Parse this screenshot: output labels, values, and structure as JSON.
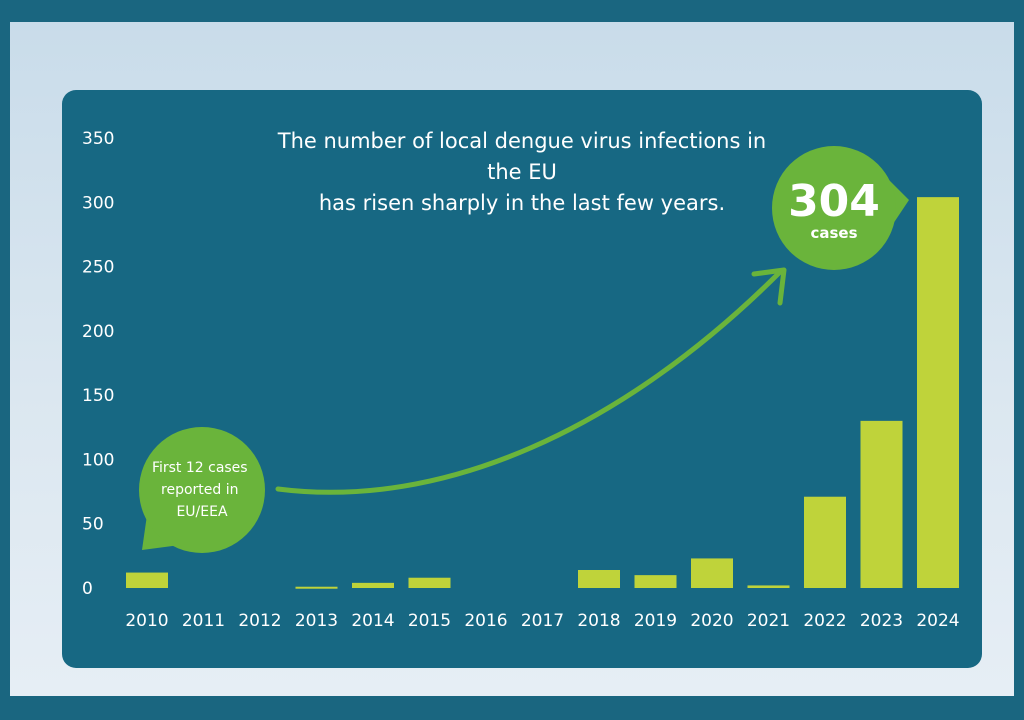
{
  "chart_data": {
    "type": "bar",
    "title": "The number of local dengue virus infections in the EU has risen sharply in the last few years.",
    "title_lines": [
      "The number of local dengue virus infections in the EU",
      "has risen sharply in the last few years."
    ],
    "categories": [
      "2010",
      "2011",
      "2012",
      "2013",
      "2014",
      "2015",
      "2016",
      "2017",
      "2018",
      "2019",
      "2020",
      "2021",
      "2022",
      "2023",
      "2024"
    ],
    "values": [
      12,
      0,
      0,
      1,
      4,
      8,
      0,
      0,
      14,
      10,
      23,
      2,
      71,
      130,
      304
    ],
    "ylim": [
      0,
      350
    ],
    "yticks": [
      0,
      50,
      100,
      150,
      200,
      250,
      300,
      350
    ],
    "grid": false,
    "colors": {
      "bar": "#bfd33a",
      "bubble": "#6ab43b",
      "arrow": "#6ab43b",
      "panel": "#176883",
      "text": "#ffffff"
    },
    "annotations": {
      "first_cases": {
        "lines": [
          "First 12 cases",
          "reported in",
          "EU/EEA"
        ],
        "target_category": "2010"
      },
      "peak": {
        "number": "304",
        "unit": "cases",
        "target_category": "2024"
      }
    }
  }
}
